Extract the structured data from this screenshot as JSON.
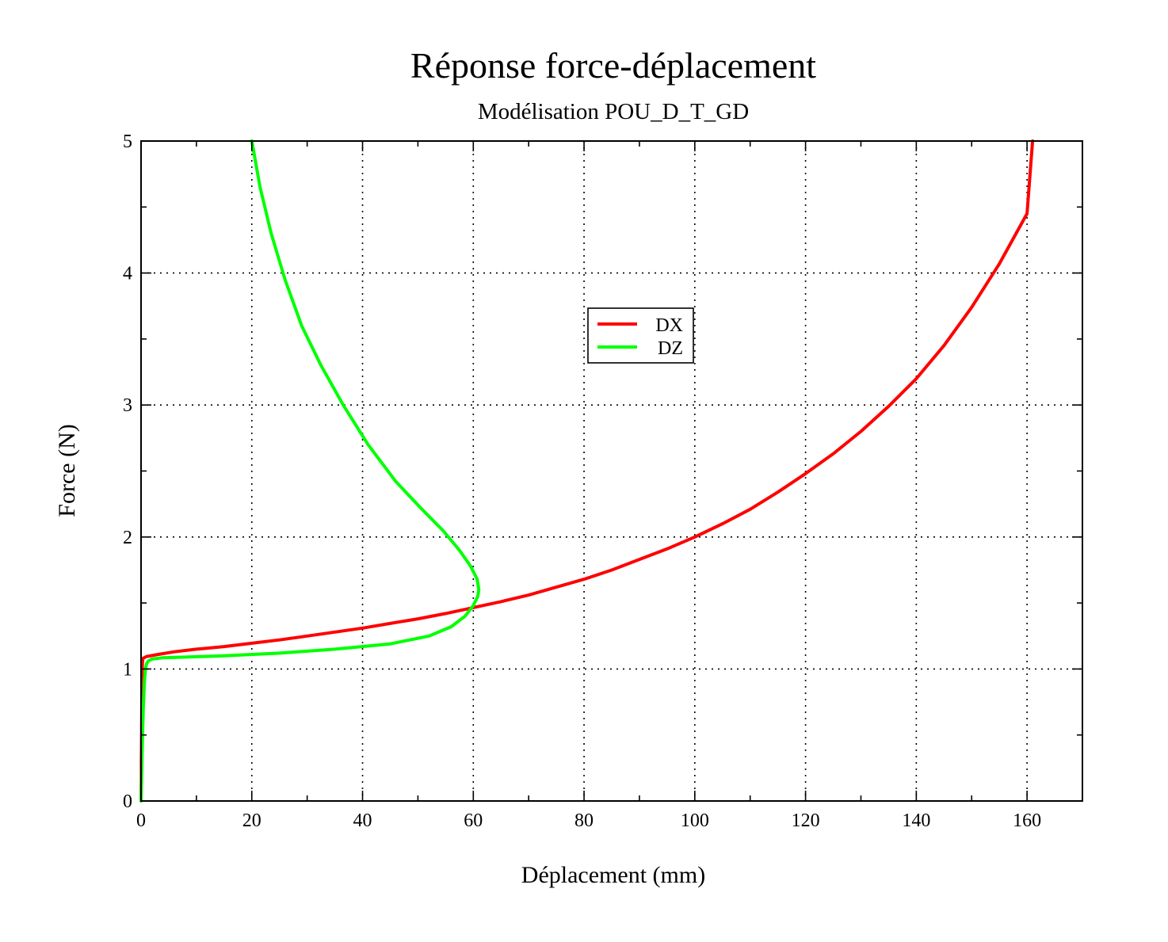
{
  "chart_data": {
    "type": "line",
    "title": "Réponse force-déplacement",
    "subtitle": "Modélisation POU_D_T_GD",
    "xlabel": "Déplacement (mm)",
    "ylabel": "Force (N)",
    "xlim": [
      0,
      170
    ],
    "ylim": [
      0,
      5
    ],
    "xticks": [
      0,
      20,
      40,
      60,
      80,
      100,
      120,
      140,
      160
    ],
    "yticks": [
      0,
      1,
      2,
      3,
      4,
      5
    ],
    "xminor_step": 10,
    "yminor_step": 0.5,
    "grid": true,
    "legend_position": "center",
    "series": [
      {
        "name": "DX",
        "color": "#ff0000",
        "x": [
          0,
          0.05,
          0.1,
          0.15,
          0.2,
          0.3,
          1,
          3,
          6,
          10,
          15,
          20,
          25,
          30,
          35,
          40,
          45,
          50,
          55,
          60,
          65,
          70,
          75,
          80,
          85,
          90,
          95,
          100,
          105,
          110,
          115,
          120,
          125,
          130,
          135,
          140,
          145,
          150,
          155,
          160,
          161
        ],
        "y": [
          0,
          0.2,
          0.5,
          0.8,
          1.0,
          1.08,
          1.095,
          1.11,
          1.13,
          1.15,
          1.17,
          1.195,
          1.22,
          1.25,
          1.28,
          1.31,
          1.345,
          1.38,
          1.42,
          1.465,
          1.51,
          1.56,
          1.62,
          1.68,
          1.75,
          1.83,
          1.91,
          2.0,
          2.1,
          2.21,
          2.34,
          2.48,
          2.63,
          2.8,
          2.99,
          3.2,
          3.45,
          3.74,
          4.07,
          4.45,
          5.0
        ]
      },
      {
        "name": "DZ",
        "color": "#00ff00",
        "x": [
          0,
          0.1,
          0.25,
          0.4,
          0.6,
          0.8,
          1.0,
          1.3,
          2,
          4,
          8,
          15,
          25,
          35,
          45,
          52,
          56,
          58.5,
          60,
          60.8,
          61,
          60.7,
          59.5,
          57.5,
          54.5,
          50.5,
          46,
          41,
          36.5,
          32.5,
          29,
          26,
          23.5,
          21.5,
          20
        ],
        "y": [
          0,
          0.2,
          0.45,
          0.7,
          0.9,
          1.0,
          1.04,
          1.06,
          1.075,
          1.085,
          1.09,
          1.1,
          1.12,
          1.15,
          1.19,
          1.25,
          1.32,
          1.4,
          1.48,
          1.55,
          1.6,
          1.68,
          1.78,
          1.9,
          2.05,
          2.22,
          2.42,
          2.7,
          3.0,
          3.3,
          3.6,
          3.95,
          4.3,
          4.65,
          5.0
        ]
      }
    ]
  }
}
